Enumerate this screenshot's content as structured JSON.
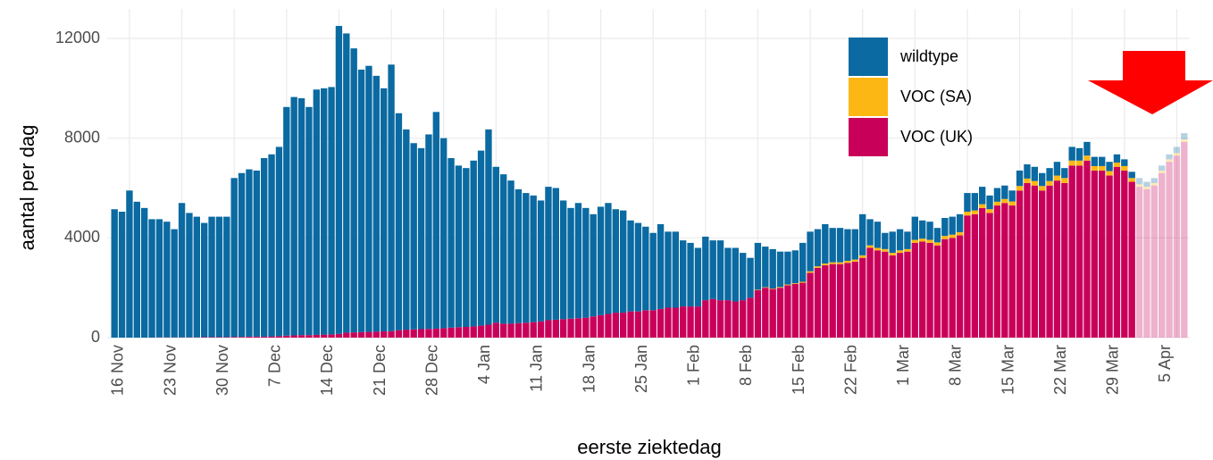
{
  "chart_data": {
    "type": "stacked_bar",
    "x_label": "eerste ziektedag",
    "y_label": "aantal per dag",
    "categories": [
      null,
      null,
      "16 Nov",
      null,
      null,
      null,
      null,
      null,
      null,
      "23 Nov",
      null,
      null,
      null,
      null,
      null,
      null,
      "30 Nov",
      null,
      null,
      null,
      null,
      null,
      null,
      "7 Dec",
      null,
      null,
      null,
      null,
      null,
      null,
      "14 Dec",
      null,
      null,
      null,
      null,
      null,
      null,
      "21 Dec",
      null,
      null,
      null,
      null,
      null,
      null,
      "28 Dec",
      null,
      null,
      null,
      null,
      null,
      null,
      "4 Jan",
      null,
      null,
      null,
      null,
      null,
      null,
      "11 Jan",
      null,
      null,
      null,
      null,
      null,
      null,
      "18 Jan",
      null,
      null,
      null,
      null,
      null,
      null,
      "25 Jan",
      null,
      null,
      null,
      null,
      null,
      null,
      "1 Feb",
      null,
      null,
      null,
      null,
      null,
      null,
      "8 Feb",
      null,
      null,
      null,
      null,
      null,
      null,
      "15 Feb",
      null,
      null,
      null,
      null,
      null,
      null,
      "22 Feb",
      null,
      null,
      null,
      null,
      null,
      null,
      "1 Mar",
      null,
      null,
      null,
      null,
      null,
      null,
      "8 Mar",
      null,
      null,
      null,
      null,
      null,
      null,
      "15 Mar",
      null,
      null,
      null,
      null,
      null,
      null,
      "22 Mar",
      null,
      null,
      null,
      null,
      null,
      null,
      "29 Mar",
      null,
      null,
      null,
      null,
      null,
      null,
      "5 Apr",
      null
    ],
    "series": [
      {
        "name": "wildtype",
        "color": "#0a6aa1",
        "values": [
          5150,
          5050,
          5900,
          5450,
          5200,
          4750,
          4740,
          4640,
          4340,
          5390,
          4990,
          4840,
          4580,
          4830,
          4830,
          4830,
          6370,
          6570,
          6710,
          6660,
          7160,
          7300,
          7590,
          9170,
          9560,
          9500,
          9150,
          9840,
          9880,
          9920,
          12350,
          12000,
          11390,
          10530,
          10670,
          10260,
          9750,
          10690,
          8700,
          8030,
          7470,
          7260,
          7800,
          8690,
          7620,
          6800,
          6480,
          6370,
          6650,
          7020,
          7830,
          6250,
          5990,
          5740,
          5370,
          5200,
          5080,
          4850,
          5350,
          5280,
          4760,
          4440,
          4620,
          4400,
          4100,
          4350,
          4450,
          4150,
          4100,
          3650,
          3550,
          3350,
          3100,
          3400,
          3050,
          3050,
          2650,
          2550,
          2350,
          2550,
          2350,
          2400,
          2100,
          2150,
          1900,
          1600,
          1880,
          1630,
          1580,
          1420,
          1320,
          1320,
          1560,
          1590,
          1490,
          1580,
          1380,
          1380,
          1270,
          1220,
          1650,
          1050,
          1050,
          650,
          850,
          850,
          700,
          930,
          730,
          730,
          580,
          720,
          720,
          720,
          750,
          700,
          700,
          550,
          550,
          540,
          440,
          620,
          570,
          570,
          520,
          520,
          550,
          400,
          550,
          500,
          550,
          370,
          370,
          370,
          330,
          270,
          250,
          250,
          200,
          200,
          200,
          200,
          250,
          250
        ]
      },
      {
        "name": "VOC (SA)",
        "color": "#fdb714",
        "values": [
          0,
          0,
          0,
          0,
          0,
          0,
          0,
          0,
          0,
          0,
          0,
          0,
          0,
          0,
          0,
          0,
          0,
          0,
          0,
          0,
          0,
          0,
          0,
          0,
          0,
          0,
          0,
          0,
          0,
          0,
          0,
          0,
          0,
          0,
          0,
          0,
          0,
          0,
          0,
          0,
          0,
          0,
          0,
          0,
          0,
          0,
          0,
          0,
          0,
          0,
          0,
          0,
          0,
          0,
          0,
          0,
          0,
          0,
          0,
          0,
          0,
          0,
          0,
          0,
          0,
          0,
          0,
          0,
          0,
          0,
          0,
          0,
          0,
          0,
          0,
          0,
          0,
          0,
          0,
          0,
          0,
          0,
          0,
          0,
          0,
          0,
          20,
          20,
          20,
          30,
          30,
          30,
          40,
          60,
          60,
          70,
          70,
          70,
          80,
          80,
          100,
          100,
          100,
          100,
          100,
          100,
          100,
          120,
          120,
          120,
          120,
          130,
          130,
          130,
          150,
          150,
          150,
          150,
          150,
          160,
          160,
          180,
          180,
          180,
          180,
          180,
          200,
          200,
          200,
          200,
          200,
          180,
          180,
          180,
          170,
          180,
          150,
          100,
          100,
          100,
          100,
          100,
          100,
          100
        ]
      },
      {
        "name": "VOC (UK)",
        "color": "#c8005a",
        "values": [
          0,
          0,
          0,
          0,
          0,
          0,
          10,
          10,
          10,
          10,
          10,
          10,
          20,
          20,
          20,
          20,
          30,
          30,
          40,
          40,
          40,
          50,
          60,
          80,
          90,
          100,
          100,
          110,
          120,
          130,
          150,
          200,
          210,
          220,
          230,
          240,
          250,
          260,
          300,
          320,
          330,
          340,
          350,
          360,
          380,
          400,
          420,
          430,
          450,
          480,
          520,
          600,
          560,
          560,
          580,
          600,
          620,
          650,
          700,
          720,
          740,
          760,
          780,
          800,
          850,
          900,
          950,
          1000,
          1000,
          1050,
          1050,
          1100,
          1100,
          1150,
          1200,
          1200,
          1250,
          1250,
          1250,
          1500,
          1550,
          1500,
          1500,
          1450,
          1500,
          1600,
          1900,
          2000,
          1950,
          2000,
          2100,
          2150,
          2200,
          2600,
          2800,
          2900,
          2950,
          2950,
          3000,
          3050,
          3200,
          3600,
          3500,
          3450,
          3300,
          3400,
          3450,
          3800,
          3850,
          3800,
          3700,
          3950,
          4000,
          4100,
          4900,
          4950,
          5200,
          5000,
          5300,
          5400,
          5300,
          5900,
          6200,
          6100,
          5900,
          6100,
          6300,
          6200,
          6900,
          6900,
          7100,
          6700,
          6700,
          6500,
          6850,
          6700,
          6250,
          6050,
          5950,
          6100,
          6600,
          7050,
          7300,
          7850
        ]
      }
    ],
    "faded_last": 7,
    "ylim": [
      0,
      12500
    ],
    "yticks": [
      0,
      4000,
      8000,
      12000
    ],
    "grid": true,
    "legend": "top-right"
  }
}
